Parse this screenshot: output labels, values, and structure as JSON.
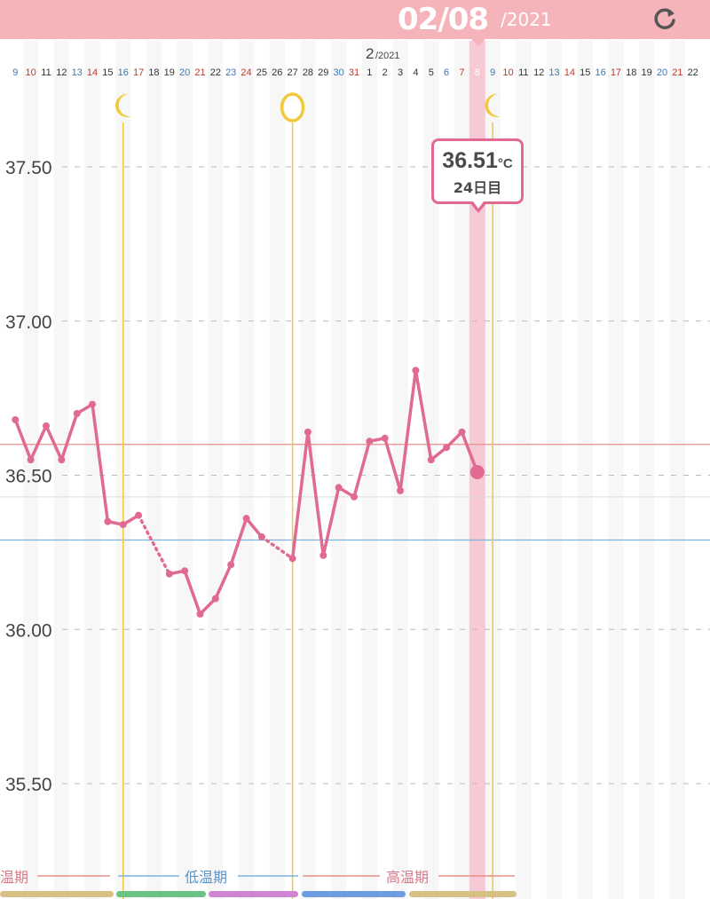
{
  "header": {
    "date": "02/08",
    "year": "/2021",
    "refresh_icon": "refresh-icon",
    "bg_color": "#f5b3ba"
  },
  "month_label": {
    "month": "2",
    "year": "/2021"
  },
  "tooltip": {
    "value": "36.51",
    "unit": "°C",
    "day": "24日目"
  },
  "colors": {
    "line": "#e06a92",
    "marker": "#f0c93c",
    "high_line": "#e8908a",
    "low_line": "#7fb3df",
    "highlight": "#f6c9d4"
  },
  "markers": [
    {
      "date": "1/16",
      "icon": "crescent-moon-icon"
    },
    {
      "date": "1/27",
      "icon": "egg-icon"
    },
    {
      "date": "2/9",
      "icon": "crescent-moon-icon"
    }
  ],
  "phase_labels": {
    "left": "温期",
    "low": "低温期",
    "high": "高温期"
  },
  "phase_bar_colors": [
    "#d6c084",
    "#6cc283",
    "#cf85d2",
    "#6d9ce0",
    "#d6c084"
  ],
  "chart_data": {
    "type": "line",
    "x": [
      "1/9",
      "1/10",
      "1/11",
      "1/12",
      "1/13",
      "1/14",
      "1/15",
      "1/16",
      "1/17",
      "1/18",
      "1/19",
      "1/20",
      "1/21",
      "1/22",
      "1/23",
      "1/24",
      "1/25",
      "1/26",
      "1/27",
      "1/28",
      "1/29",
      "1/30",
      "1/31",
      "2/1",
      "2/2",
      "2/3",
      "2/4",
      "2/5",
      "2/6",
      "2/7",
      "2/8",
      "2/9",
      "2/10",
      "2/11",
      "2/12",
      "2/13",
      "2/14",
      "2/15",
      "2/16",
      "2/17",
      "2/18",
      "2/19",
      "2/20",
      "2/21",
      "2/22"
    ],
    "x_tick_labels": [
      "9",
      "10",
      "11",
      "12",
      "13",
      "14",
      "15",
      "16",
      "17",
      "18",
      "19",
      "20",
      "21",
      "22",
      "23",
      "24",
      "25",
      "26",
      "27",
      "28",
      "29",
      "30",
      "31",
      "1",
      "2",
      "3",
      "4",
      "5",
      "6",
      "7",
      "8",
      "9",
      "10",
      "11",
      "12",
      "13",
      "14",
      "15",
      "16",
      "17",
      "18",
      "19",
      "20",
      "21",
      "22"
    ],
    "series": [
      {
        "values": [
          36.68,
          36.55,
          36.66,
          36.55,
          36.7,
          36.73,
          36.35,
          36.34,
          36.37,
          null,
          36.18,
          36.19,
          36.05,
          36.1,
          36.21,
          36.36,
          36.3,
          null,
          36.23,
          36.64,
          36.24,
          36.46,
          36.43,
          36.61,
          36.62,
          36.45,
          36.84,
          36.55,
          36.59,
          36.64,
          36.51,
          null,
          null,
          null,
          null,
          null,
          null,
          null,
          null,
          null,
          null,
          null,
          null,
          null,
          null
        ]
      }
    ],
    "y_ticks": [
      "37.50",
      "37.00",
      "36.50",
      "36.00",
      "35.50"
    ],
    "ylim": [
      35.2,
      37.7
    ],
    "high_line": 36.6,
    "low_line": 36.29,
    "selected": "2/8",
    "grid": true
  }
}
